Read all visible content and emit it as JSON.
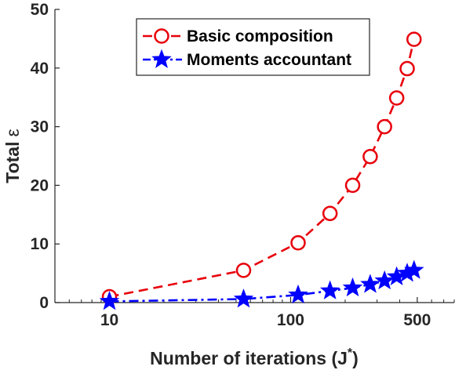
{
  "chart_data": {
    "type": "line",
    "xlabel": "Number of iterations (J",
    "xlabel_sup": "*",
    "xlabel_close": ")",
    "ylabel": "Total",
    "ylabel_symbol": "ε",
    "x_scale": "log",
    "xlim": [
      5,
      800
    ],
    "ylim": [
      0,
      50
    ],
    "x_ticks": [
      10,
      100,
      500
    ],
    "y_ticks": [
      0,
      10,
      20,
      30,
      40,
      50
    ],
    "grid": false,
    "legend_position": "top-center",
    "series": [
      {
        "name": "Basic composition",
        "color": "#e8000b",
        "marker": "circle",
        "line_style": "dashed",
        "x": [
          10,
          55,
          110,
          165,
          220,
          275,
          330,
          385,
          440,
          480
        ],
        "y": [
          1,
          5.5,
          10.2,
          15.2,
          20,
          24.9,
          30,
          34.9,
          39.9,
          44.9
        ]
      },
      {
        "name": "Moments accountant",
        "color": "#0000ff",
        "marker": "star",
        "line_style": "dash-dot",
        "x": [
          10,
          55,
          110,
          165,
          220,
          275,
          330,
          385,
          440,
          480
        ],
        "y": [
          0.2,
          0.6,
          1.3,
          2.0,
          2.5,
          3.1,
          3.7,
          4.4,
          5.0,
          5.5
        ]
      }
    ]
  }
}
